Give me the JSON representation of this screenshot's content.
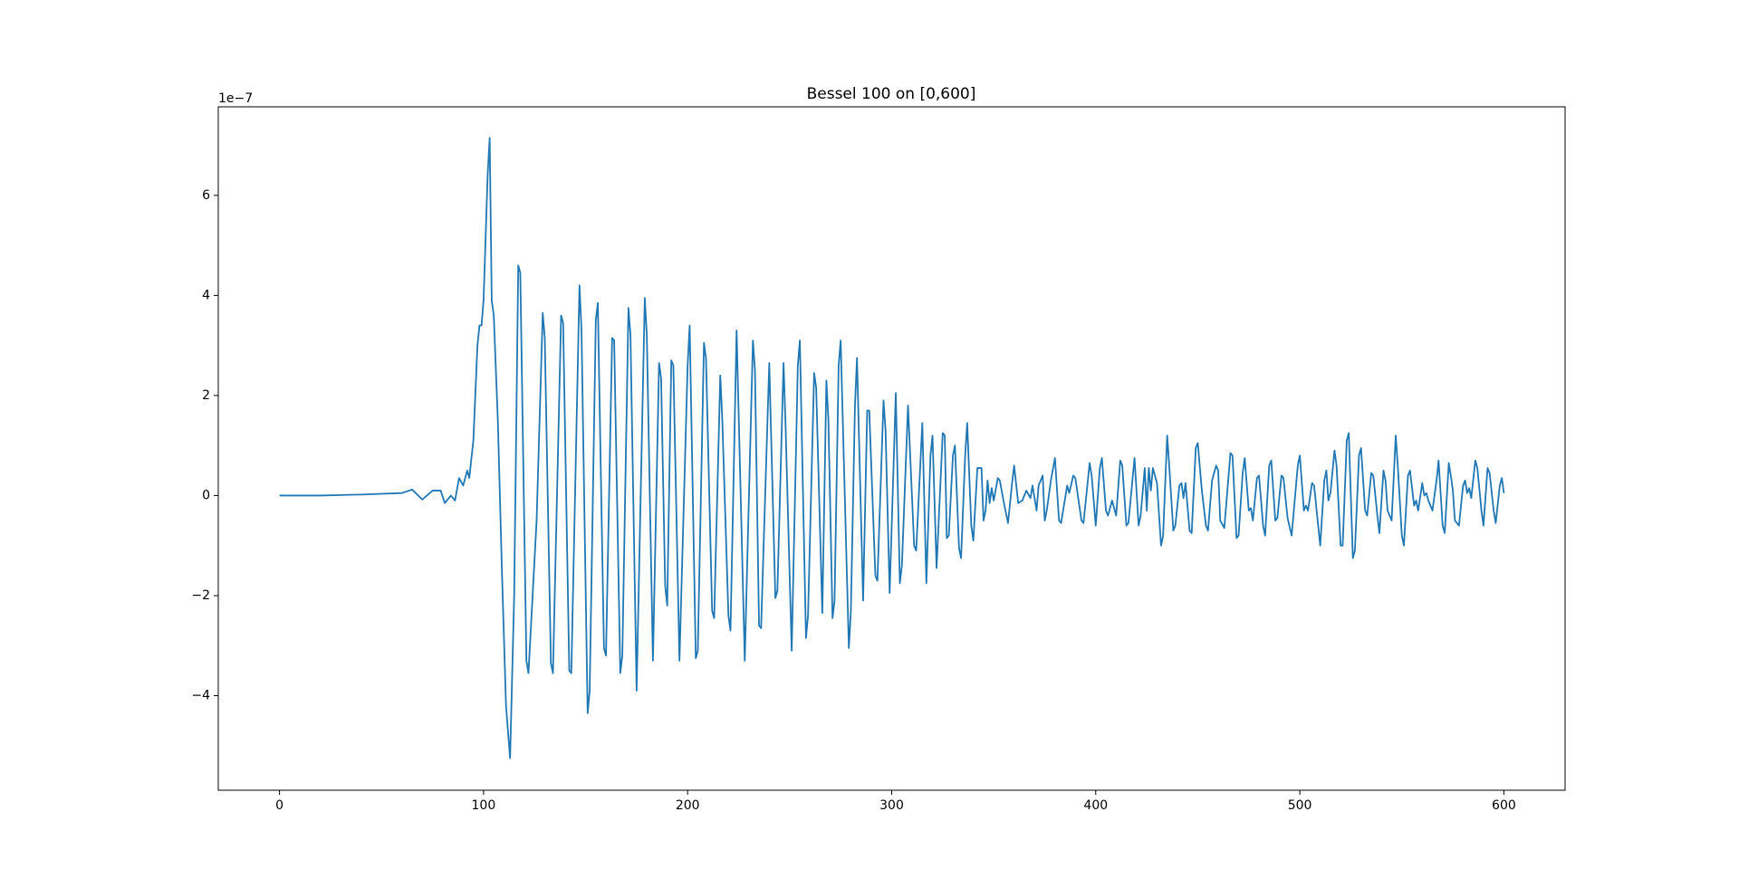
{
  "chart_data": {
    "type": "line",
    "title": "Bessel 100 on [0,600]",
    "y_offset_label": "1e−7",
    "xlim": [
      -30,
      630
    ],
    "ylim": [
      -5.89,
      7.77
    ],
    "xticks": [
      0,
      100,
      200,
      300,
      400,
      500,
      600
    ],
    "yticks": [
      {
        "value": -4,
        "label": "−4"
      },
      {
        "value": -2,
        "label": "−2"
      },
      0,
      2,
      4,
      6
    ],
    "grid": false,
    "series": [
      {
        "color": "#1f77b4",
        "x": [
          0,
          20,
          40,
          60,
          65,
          70,
          75,
          79,
          81,
          84,
          86,
          88,
          90,
          92,
          93,
          95,
          97,
          98,
          99,
          100,
          102,
          103,
          104,
          105,
          107,
          109,
          111,
          113,
          115,
          117,
          118,
          121,
          122,
          126,
          129,
          130,
          133,
          134,
          138,
          139,
          142,
          143,
          147,
          148,
          151,
          152,
          155,
          156,
          159,
          160,
          163,
          164,
          167,
          168,
          171,
          172,
          175,
          179,
          180,
          183,
          186,
          187,
          189,
          190,
          192,
          193,
          196,
          200,
          201,
          204,
          205,
          208,
          209,
          212,
          213,
          216,
          217,
          220,
          221,
          224,
          228,
          232,
          233,
          235,
          236,
          240,
          243,
          244,
          247,
          248,
          251,
          254,
          255,
          258,
          259,
          262,
          263,
          266,
          268,
          269,
          271,
          272,
          274,
          275,
          279,
          280,
          282,
          283,
          286,
          288,
          289,
          292,
          293,
          296,
          297,
          299,
          302,
          304,
          305,
          308,
          311,
          312,
          315,
          317,
          319,
          320,
          322,
          325,
          326,
          327,
          328,
          330,
          331,
          333,
          334,
          336,
          337,
          339,
          340,
          342,
          344,
          345,
          346,
          347,
          348,
          349,
          350,
          352,
          353,
          355,
          357,
          359,
          360,
          362,
          364,
          366,
          368,
          369,
          371,
          372,
          374,
          375,
          376,
          378,
          380,
          382,
          383,
          386,
          387,
          389,
          390,
          393,
          394,
          397,
          398,
          400,
          402,
          403,
          405,
          406,
          408,
          410,
          412,
          413,
          415,
          416,
          419,
          421,
          422,
          424,
          425,
          426,
          427,
          428,
          430,
          432,
          433,
          435,
          436,
          438,
          439,
          441,
          442,
          443,
          444,
          446,
          447,
          449,
          450,
          452,
          454,
          455,
          457,
          459,
          460,
          461,
          463,
          466,
          467,
          469,
          470,
          472,
          473,
          475,
          476,
          477,
          479,
          480,
          482,
          483,
          485,
          486,
          488,
          489,
          491,
          492,
          494,
          496,
          499,
          500,
          502,
          503,
          504,
          506,
          507,
          509,
          510,
          512,
          513,
          514,
          515,
          517,
          518,
          520,
          521,
          523,
          524,
          526,
          527,
          529,
          530,
          532,
          533,
          535,
          536,
          538,
          539,
          541,
          542,
          543,
          545,
          547,
          548,
          550,
          551,
          553,
          554,
          556,
          557,
          558,
          560,
          561,
          562,
          563,
          565,
          567,
          568,
          570,
          571,
          573,
          574,
          575,
          576,
          578,
          580,
          581,
          582,
          583,
          584,
          586,
          587,
          589,
          590,
          592,
          593,
          595,
          596,
          598,
          599,
          600
        ],
        "values": [
          0,
          0,
          0.02,
          0.05,
          0.12,
          -0.08,
          0.1,
          0.1,
          -0.15,
          0,
          -0.1,
          0.35,
          0.2,
          0.5,
          0.35,
          1.1,
          3,
          3.4,
          3.4,
          3.9,
          6.4,
          7.15,
          3.9,
          3.6,
          1.5,
          -1.5,
          -4.2,
          -5.25,
          -2,
          4.6,
          4.45,
          -3.3,
          -3.55,
          -0.5,
          3.65,
          3.15,
          -3.35,
          -3.55,
          3.6,
          3.45,
          -3.5,
          -3.55,
          4.2,
          3.3,
          -4.35,
          -3.9,
          3.5,
          3.85,
          -3.05,
          -3.2,
          3.15,
          3.1,
          -3.55,
          -3.2,
          3.75,
          3.2,
          -3.9,
          3.95,
          3.2,
          -3.3,
          2.65,
          2.35,
          -1.8,
          -2.2,
          2.7,
          2.6,
          -3.3,
          2.6,
          3.4,
          -3.25,
          -3.1,
          3.05,
          2.75,
          -2.3,
          -2.45,
          2.4,
          1.5,
          -2.4,
          -2.7,
          3.3,
          -3.3,
          3.1,
          2.5,
          -2.6,
          -2.65,
          2.65,
          -2.05,
          -1.9,
          2.65,
          1.4,
          -3.1,
          2.6,
          3.1,
          -2.85,
          -2.4,
          2.45,
          2.15,
          -2.35,
          2.3,
          1.5,
          -2.45,
          -2.1,
          2.6,
          3.1,
          -3.05,
          -2.3,
          1.8,
          2.75,
          -2.1,
          1.7,
          1.7,
          -1.6,
          -1.7,
          1.9,
          1.3,
          -1.95,
          2.05,
          -1.75,
          -1.4,
          1.8,
          -1,
          -1.1,
          1.45,
          -1.75,
          0.8,
          1.2,
          -1.45,
          1.25,
          1.2,
          -0.85,
          -0.8,
          0.8,
          1,
          -1.05,
          -1.25,
          0.8,
          1.45,
          -0.6,
          -0.9,
          0.55,
          0.55,
          -0.5,
          -0.3,
          0.3,
          -0.15,
          0.15,
          -0.1,
          0.35,
          0.3,
          -0.15,
          -0.55,
          0.25,
          0.6,
          -0.15,
          -0.1,
          0.1,
          -0.05,
          0.2,
          -0.3,
          0.2,
          0.4,
          -0.5,
          -0.3,
          0.3,
          0.75,
          -0.5,
          -0.55,
          0.2,
          0.05,
          0.4,
          0.35,
          -0.5,
          -0.55,
          0.65,
          0.4,
          -0.6,
          0.55,
          0.75,
          -0.3,
          -0.4,
          -0.1,
          -0.4,
          0.7,
          0.6,
          -0.6,
          -0.55,
          0.75,
          -0.6,
          -0.4,
          0.55,
          -0.3,
          0.55,
          0.1,
          0.55,
          0.25,
          -1,
          -0.8,
          1.2,
          0.6,
          -0.7,
          -0.6,
          0.2,
          0.25,
          -0.05,
          0.25,
          -0.7,
          -0.75,
          0.95,
          1.05,
          0.1,
          -0.6,
          -0.7,
          0.3,
          0.6,
          0.5,
          -0.5,
          -0.65,
          0.85,
          0.8,
          -0.85,
          -0.8,
          0.45,
          0.75,
          -0.3,
          -0.25,
          -0.5,
          0.35,
          0.4,
          -0.6,
          -0.8,
          0.6,
          0.7,
          -0.5,
          -0.45,
          0.4,
          0.35,
          -0.45,
          -0.8,
          0.6,
          0.8,
          -0.3,
          -0.2,
          -0.3,
          0.25,
          0.2,
          -0.6,
          -1,
          0.3,
          0.5,
          -0.1,
          0.05,
          0.9,
          0.6,
          -1,
          -1,
          1.1,
          1.25,
          -1.25,
          -1.1,
          0.8,
          0.95,
          -0.3,
          -0.4,
          0.45,
          0.4,
          -0.4,
          -0.75,
          0.5,
          0.3,
          -0.3,
          -0.5,
          1.2,
          0.6,
          -0.8,
          -1,
          0.4,
          0.5,
          -0.2,
          -0.1,
          -0.3,
          0.25,
          0,
          0.05,
          -0.1,
          -0.3,
          0.3,
          0.7,
          -0.6,
          -0.75,
          0.65,
          0.4,
          0.1,
          -0.5,
          -0.6,
          0.2,
          0.3,
          0.05,
          0.15,
          -0.05,
          0.7,
          0.55,
          -0.3,
          -0.6,
          0.55,
          0.45,
          -0.3,
          -0.55,
          0.2,
          0.35,
          0.05
        ]
      }
    ]
  }
}
